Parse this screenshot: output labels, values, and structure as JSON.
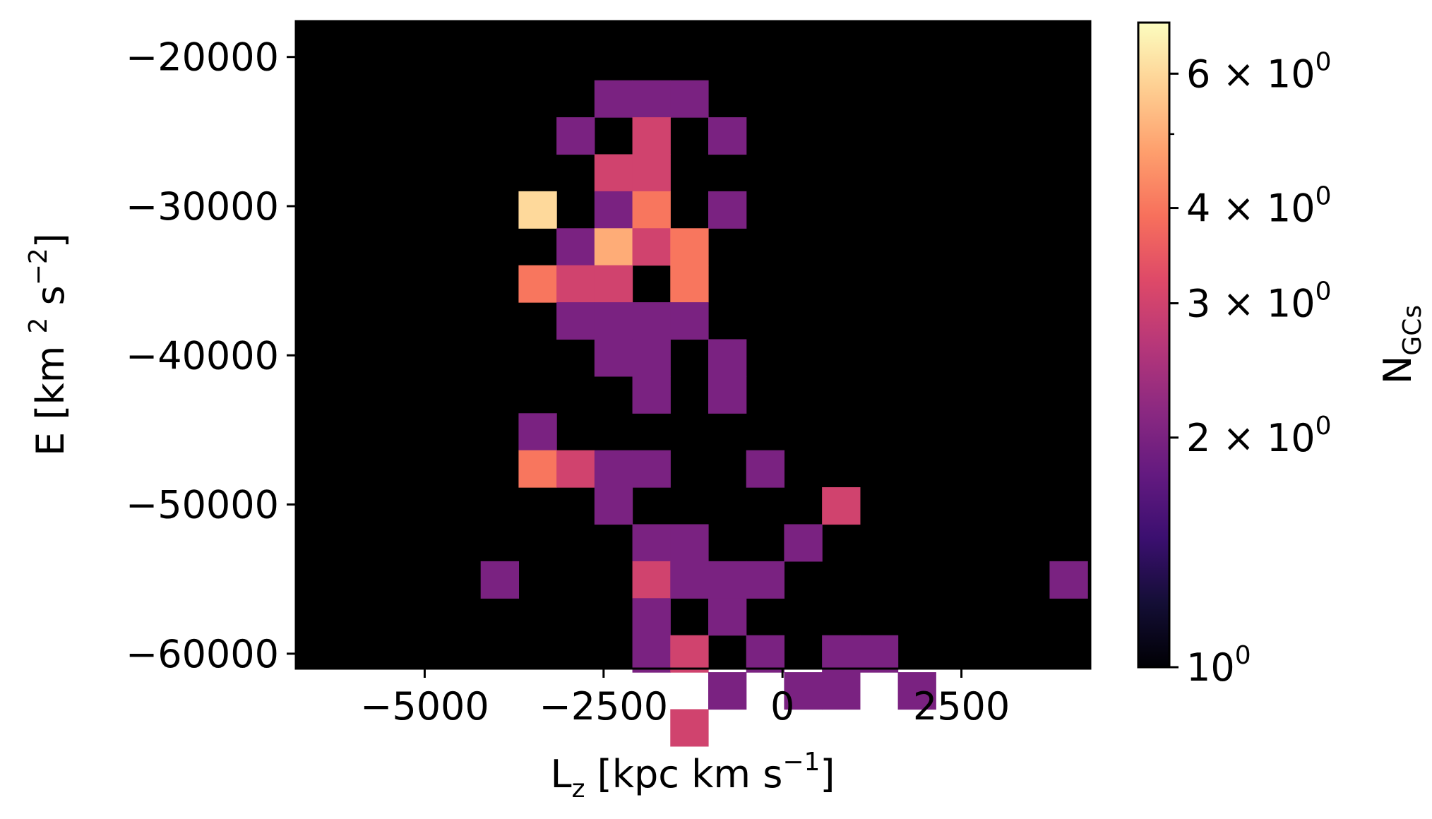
{
  "chart_data": {
    "type": "heatmap",
    "title": "",
    "xlabel": {
      "base": "L",
      "sub": "z",
      "rest": " [kpc km s",
      "sup": "−1",
      "end": "]"
    },
    "ylabel": {
      "a": "E [km ",
      "sup1": "2",
      "b": " s",
      "sup2": "−2",
      "c": "]"
    },
    "xlim": [
      -6800,
      4300
    ],
    "ylim": [
      -61000,
      -17600
    ],
    "x_ticks": [
      -5000,
      -2500,
      0,
      2500
    ],
    "x_tick_labels": [
      "−5000",
      "−2500",
      "0",
      "2500"
    ],
    "y_ticks": [
      -20000,
      -30000,
      -40000,
      -50000,
      -60000
    ],
    "y_tick_labels": [
      "−20000",
      "−30000",
      "−40000",
      "−50000",
      "−60000"
    ],
    "background_color": "#000000",
    "colormap": "magma",
    "colorbar": {
      "label_base": "N",
      "label_sub": "GCs",
      "scale": "log",
      "range": [
        1,
        7
      ],
      "major_ticks": [
        1,
        2,
        3,
        4,
        6
      ],
      "major_tick_labels": [
        {
          "mant": "",
          "base": "10",
          "exp": "0"
        },
        {
          "mant": "2 × ",
          "base": "10",
          "exp": "0"
        },
        {
          "mant": "3 × ",
          "base": "10",
          "exp": "0"
        },
        {
          "mant": "4 × ",
          "base": "10",
          "exp": "0"
        },
        {
          "mant": "6 × ",
          "base": "10",
          "exp": "0"
        }
      ],
      "minor_ticks": [
        5
      ]
    },
    "bin_width_x": 530,
    "bin_height_y": 2480,
    "cells": [
      {
        "x": -2363,
        "y": -22800,
        "v": 2
      },
      {
        "x": -1833,
        "y": -22800,
        "v": 2
      },
      {
        "x": -1303,
        "y": -22800,
        "v": 2
      },
      {
        "x": -2893,
        "y": -25280,
        "v": 2
      },
      {
        "x": -1833,
        "y": -25280,
        "v": 3
      },
      {
        "x": -773,
        "y": -25280,
        "v": 2
      },
      {
        "x": -2363,
        "y": -27760,
        "v": 3
      },
      {
        "x": -1833,
        "y": -27760,
        "v": 3
      },
      {
        "x": -3423,
        "y": -30240,
        "v": 6
      },
      {
        "x": -2363,
        "y": -30240,
        "v": 2
      },
      {
        "x": -1833,
        "y": -30240,
        "v": 4
      },
      {
        "x": -773,
        "y": -30240,
        "v": 2
      },
      {
        "x": -2893,
        "y": -32720,
        "v": 2
      },
      {
        "x": -2363,
        "y": -32720,
        "v": 5
      },
      {
        "x": -1833,
        "y": -32720,
        "v": 3
      },
      {
        "x": -1303,
        "y": -32720,
        "v": 4
      },
      {
        "x": -3423,
        "y": -35200,
        "v": 4
      },
      {
        "x": -2893,
        "y": -35200,
        "v": 3
      },
      {
        "x": -2363,
        "y": -35200,
        "v": 3
      },
      {
        "x": -1303,
        "y": -35200,
        "v": 4
      },
      {
        "x": -2893,
        "y": -37680,
        "v": 2
      },
      {
        "x": -2363,
        "y": -37680,
        "v": 2
      },
      {
        "x": -1833,
        "y": -37680,
        "v": 2
      },
      {
        "x": -1303,
        "y": -37680,
        "v": 2
      },
      {
        "x": -2363,
        "y": -40160,
        "v": 2
      },
      {
        "x": -1833,
        "y": -40160,
        "v": 2
      },
      {
        "x": -773,
        "y": -40160,
        "v": 2
      },
      {
        "x": -1833,
        "y": -42640,
        "v": 2
      },
      {
        "x": -773,
        "y": -42640,
        "v": 2
      },
      {
        "x": -3423,
        "y": -45120,
        "v": 2
      },
      {
        "x": -3423,
        "y": -47600,
        "v": 4
      },
      {
        "x": -2893,
        "y": -47600,
        "v": 3
      },
      {
        "x": -2363,
        "y": -47600,
        "v": 2
      },
      {
        "x": -1833,
        "y": -47600,
        "v": 2
      },
      {
        "x": -243,
        "y": -47600,
        "v": 2
      },
      {
        "x": -2363,
        "y": -50080,
        "v": 2
      },
      {
        "x": 817,
        "y": -50080,
        "v": 3
      },
      {
        "x": -1833,
        "y": -52560,
        "v": 2
      },
      {
        "x": -1303,
        "y": -52560,
        "v": 2
      },
      {
        "x": 287,
        "y": -52560,
        "v": 2
      },
      {
        "x": -3953,
        "y": -55040,
        "v": 2
      },
      {
        "x": -1833,
        "y": -55040,
        "v": 3
      },
      {
        "x": -1303,
        "y": -55040,
        "v": 2
      },
      {
        "x": -773,
        "y": -55040,
        "v": 2
      },
      {
        "x": -243,
        "y": -55040,
        "v": 2
      },
      {
        "x": 3997,
        "y": -55040,
        "v": 2
      },
      {
        "x": -1833,
        "y": -57520,
        "v": 2
      },
      {
        "x": -773,
        "y": -57520,
        "v": 2
      },
      {
        "x": -1833,
        "y": -60000,
        "v": 2
      },
      {
        "x": -1303,
        "y": -60000,
        "v": 3
      },
      {
        "x": -243,
        "y": -60000,
        "v": 2
      },
      {
        "x": 817,
        "y": -60000,
        "v": 2
      },
      {
        "x": 1347,
        "y": -60000,
        "v": 2
      },
      {
        "x": -773,
        "y": -62480,
        "v": 2
      },
      {
        "x": 287,
        "y": -62480,
        "v": 2
      },
      {
        "x": 817,
        "y": -62480,
        "v": 2
      },
      {
        "x": 1877,
        "y": -62480,
        "v": 2
      },
      {
        "x": -1303,
        "y": -64960,
        "v": 3
      }
    ]
  }
}
